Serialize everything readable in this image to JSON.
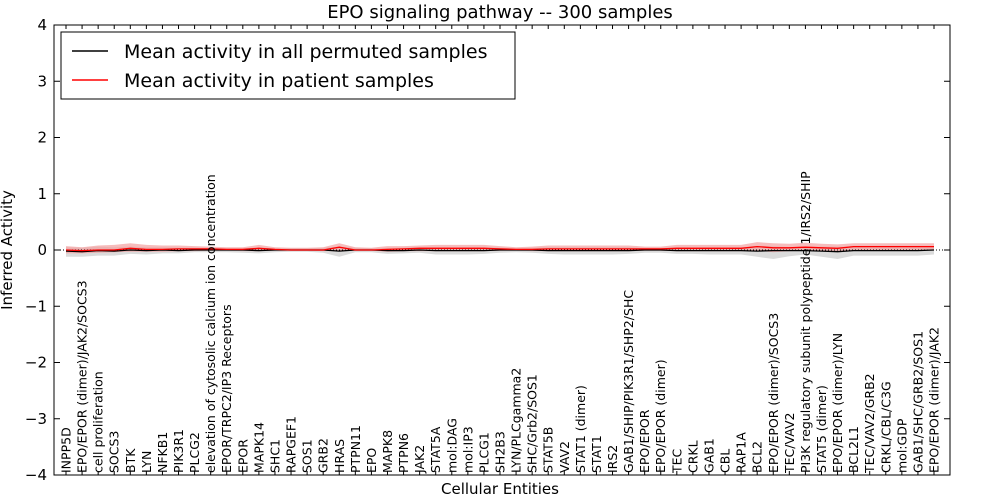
{
  "chart_data": {
    "type": "line",
    "title": "EPO signaling pathway -- 300 samples",
    "xlabel": "Cellular Entities",
    "ylabel": "Inferred Activity",
    "ylim": [
      -4,
      4
    ],
    "yticks": [
      -4,
      -3,
      -2,
      -1,
      0,
      1,
      2,
      3,
      4
    ],
    "ytick_labels": [
      "−4",
      "−3",
      "−2",
      "−1",
      "0",
      "1",
      "2",
      "3",
      "4"
    ],
    "legend_position": "top-left",
    "categories": [
      "INPP5D",
      "EPO/EPOR (dimer)/JAK2/SOCS3",
      "cell proliferation",
      "SOCS3",
      "BTK",
      "LYN",
      "NFKB1",
      "PIK3R1",
      "PLCG2",
      "elevation of cytosolic calcium ion concentration",
      "EPOR/TRPC2/IP3 Receptors",
      "EPOR",
      "MAPK14",
      "SHC1",
      "RAPGEF1",
      "SOS1",
      "GRB2",
      "HRAS",
      "PTPN11",
      "EPO",
      "MAPK8",
      "PTPN6",
      "JAK2",
      "STAT5A",
      "mol:DAG",
      "mol:IP3",
      "PLCG1",
      "SH2B3",
      "LYN/PLCgamma2",
      "SHC/Grb2/SOS1",
      "STAT5B",
      "VAV2",
      "STAT1 (dimer)",
      "STAT1",
      "IRS2",
      "GAB1/SHIP/PIK3R1/SHP2/SHC",
      "EPO/EPOR",
      "EPO/EPOR (dimer)",
      "TEC",
      "CRKL",
      "GAB1",
      "CBL",
      "RAP1A",
      "BCL2",
      "EPO/EPOR (dimer)/SOCS3",
      "TEC/VAV2",
      "PI3K regulatory subunit polypeptide 1/IRS2/SHIP",
      "STAT5 (dimer)",
      "EPO/EPOR (dimer)/LYN",
      "BCL2L1",
      "TEC/VAV2/GRB2",
      "CRKL/CBL/C3G",
      "mol:GDP",
      "GAB1/SHC/GRB2/SOS1",
      "EPO/EPOR (dimer)/JAK2"
    ],
    "series": [
      {
        "name": "Mean activity in all permuted samples",
        "color": "#000000",
        "band_color": "#c8c8c8",
        "values": [
          -0.02,
          -0.03,
          -0.01,
          -0.02,
          0.0,
          -0.01,
          0.0,
          -0.01,
          0.0,
          0.0,
          0.0,
          0.0,
          -0.01,
          0.0,
          0.0,
          0.0,
          0.0,
          -0.02,
          0.0,
          0.0,
          -0.01,
          -0.01,
          0.0,
          -0.01,
          -0.01,
          -0.01,
          -0.01,
          0.0,
          0.0,
          0.0,
          -0.01,
          -0.01,
          -0.01,
          -0.01,
          -0.01,
          -0.01,
          0.0,
          0.0,
          -0.01,
          -0.01,
          -0.01,
          -0.01,
          -0.01,
          -0.02,
          -0.01,
          -0.01,
          -0.01,
          -0.02,
          -0.03,
          -0.01,
          -0.01,
          -0.01,
          -0.01,
          -0.01,
          0.0
        ],
        "lower": [
          -0.12,
          -0.12,
          -0.1,
          -0.1,
          -0.07,
          -0.08,
          -0.06,
          -0.06,
          -0.04,
          -0.04,
          -0.04,
          -0.05,
          -0.06,
          -0.04,
          -0.03,
          -0.03,
          -0.05,
          -0.12,
          -0.04,
          -0.04,
          -0.07,
          -0.06,
          -0.05,
          -0.08,
          -0.08,
          -0.08,
          -0.07,
          -0.05,
          -0.04,
          -0.05,
          -0.07,
          -0.08,
          -0.08,
          -0.08,
          -0.08,
          -0.07,
          -0.05,
          -0.05,
          -0.07,
          -0.07,
          -0.08,
          -0.08,
          -0.08,
          -0.12,
          -0.16,
          -0.11,
          -0.08,
          -0.12,
          -0.16,
          -0.1,
          -0.1,
          -0.1,
          -0.1,
          -0.1,
          -0.08
        ],
        "upper": [
          0.05,
          0.04,
          0.06,
          0.05,
          0.06,
          0.05,
          0.05,
          0.04,
          0.04,
          0.03,
          0.03,
          0.03,
          0.04,
          0.03,
          0.03,
          0.03,
          0.04,
          0.06,
          0.04,
          0.03,
          0.04,
          0.04,
          0.05,
          0.05,
          0.05,
          0.05,
          0.05,
          0.04,
          0.03,
          0.04,
          0.05,
          0.05,
          0.05,
          0.05,
          0.05,
          0.05,
          0.03,
          0.03,
          0.05,
          0.05,
          0.05,
          0.05,
          0.05,
          0.07,
          0.07,
          0.05,
          0.05,
          0.06,
          0.06,
          0.06,
          0.05,
          0.05,
          0.05,
          0.05,
          0.05
        ]
      },
      {
        "name": "Mean activity in patient samples",
        "color": "#ff0000",
        "band_color": "#f2a0a0",
        "values": [
          0.0,
          -0.01,
          0.0,
          0.0,
          0.03,
          0.01,
          0.01,
          0.02,
          0.02,
          0.02,
          0.01,
          0.01,
          0.03,
          0.01,
          0.0,
          0.0,
          0.0,
          0.05,
          0.0,
          0.0,
          0.01,
          0.02,
          0.03,
          0.03,
          0.03,
          0.03,
          0.03,
          0.02,
          0.01,
          0.01,
          0.02,
          0.02,
          0.02,
          0.02,
          0.02,
          0.02,
          0.02,
          0.02,
          0.03,
          0.03,
          0.03,
          0.03,
          0.03,
          0.06,
          0.04,
          0.04,
          0.05,
          0.04,
          0.03,
          0.06,
          0.06,
          0.06,
          0.06,
          0.06,
          0.06
        ],
        "lower": [
          -0.06,
          -0.06,
          -0.05,
          -0.04,
          -0.03,
          -0.03,
          -0.03,
          -0.02,
          -0.02,
          -0.01,
          -0.01,
          -0.02,
          -0.02,
          -0.01,
          -0.01,
          -0.01,
          -0.02,
          -0.02,
          -0.01,
          -0.01,
          -0.03,
          -0.02,
          -0.02,
          -0.02,
          -0.02,
          -0.02,
          -0.02,
          -0.01,
          -0.01,
          -0.02,
          -0.02,
          -0.02,
          -0.02,
          -0.02,
          -0.02,
          -0.02,
          -0.01,
          -0.01,
          -0.02,
          -0.02,
          -0.02,
          -0.02,
          -0.02,
          -0.01,
          -0.04,
          -0.02,
          -0.01,
          -0.02,
          -0.03,
          0.0,
          0.0,
          0.0,
          0.0,
          0.0,
          0.0
        ],
        "upper": [
          0.07,
          0.05,
          0.08,
          0.09,
          0.12,
          0.09,
          0.08,
          0.08,
          0.07,
          0.06,
          0.05,
          0.05,
          0.09,
          0.05,
          0.04,
          0.04,
          0.05,
          0.12,
          0.05,
          0.04,
          0.07,
          0.07,
          0.08,
          0.09,
          0.09,
          0.09,
          0.09,
          0.07,
          0.05,
          0.06,
          0.08,
          0.08,
          0.08,
          0.08,
          0.08,
          0.08,
          0.06,
          0.06,
          0.09,
          0.09,
          0.09,
          0.09,
          0.09,
          0.14,
          0.12,
          0.11,
          0.13,
          0.11,
          0.1,
          0.12,
          0.12,
          0.12,
          0.12,
          0.12,
          0.12
        ]
      }
    ]
  }
}
